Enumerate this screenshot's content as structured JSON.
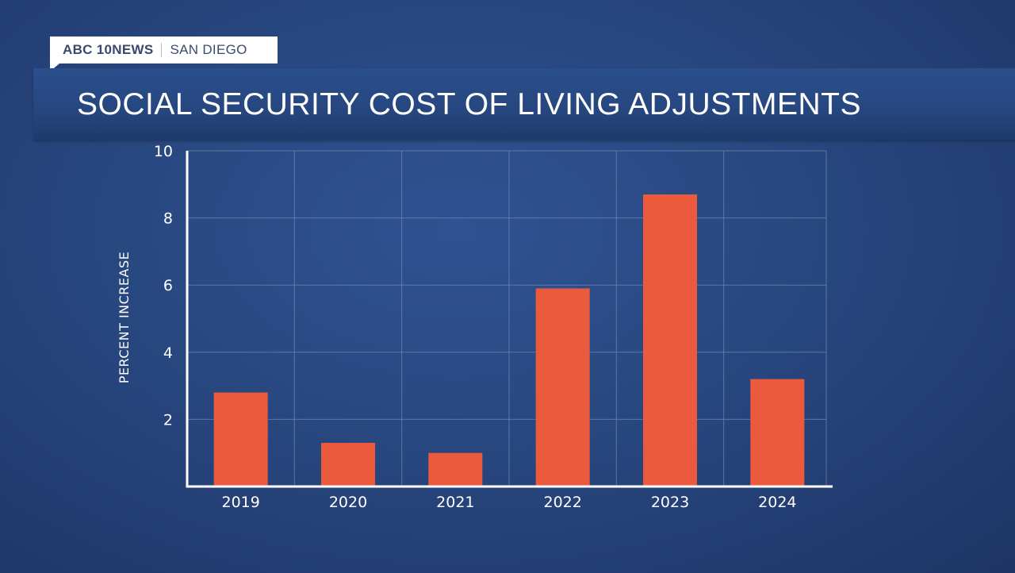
{
  "brand": {
    "station": "ABC 10NEWS",
    "city": "SAN DIEGO"
  },
  "colors": {
    "bar": "#ec5a3d",
    "grid": "#6f86b3",
    "axis": "#ffffff",
    "text": "#ffffff",
    "brand_text": "#3a4a6e"
  },
  "chart_data": {
    "type": "bar",
    "title": "SOCIAL SECURITY COST OF LIVING ADJUSTMENTS",
    "xlabel": "",
    "ylabel": "PERCENT INCREASE",
    "categories": [
      "2019",
      "2020",
      "2021",
      "2022",
      "2023",
      "2024"
    ],
    "values": [
      2.8,
      1.3,
      1.0,
      5.9,
      8.7,
      3.2
    ],
    "ylim": [
      0,
      10
    ],
    "yticks": [
      2,
      4,
      6,
      8,
      10
    ],
    "grid": true,
    "legend": "none"
  }
}
